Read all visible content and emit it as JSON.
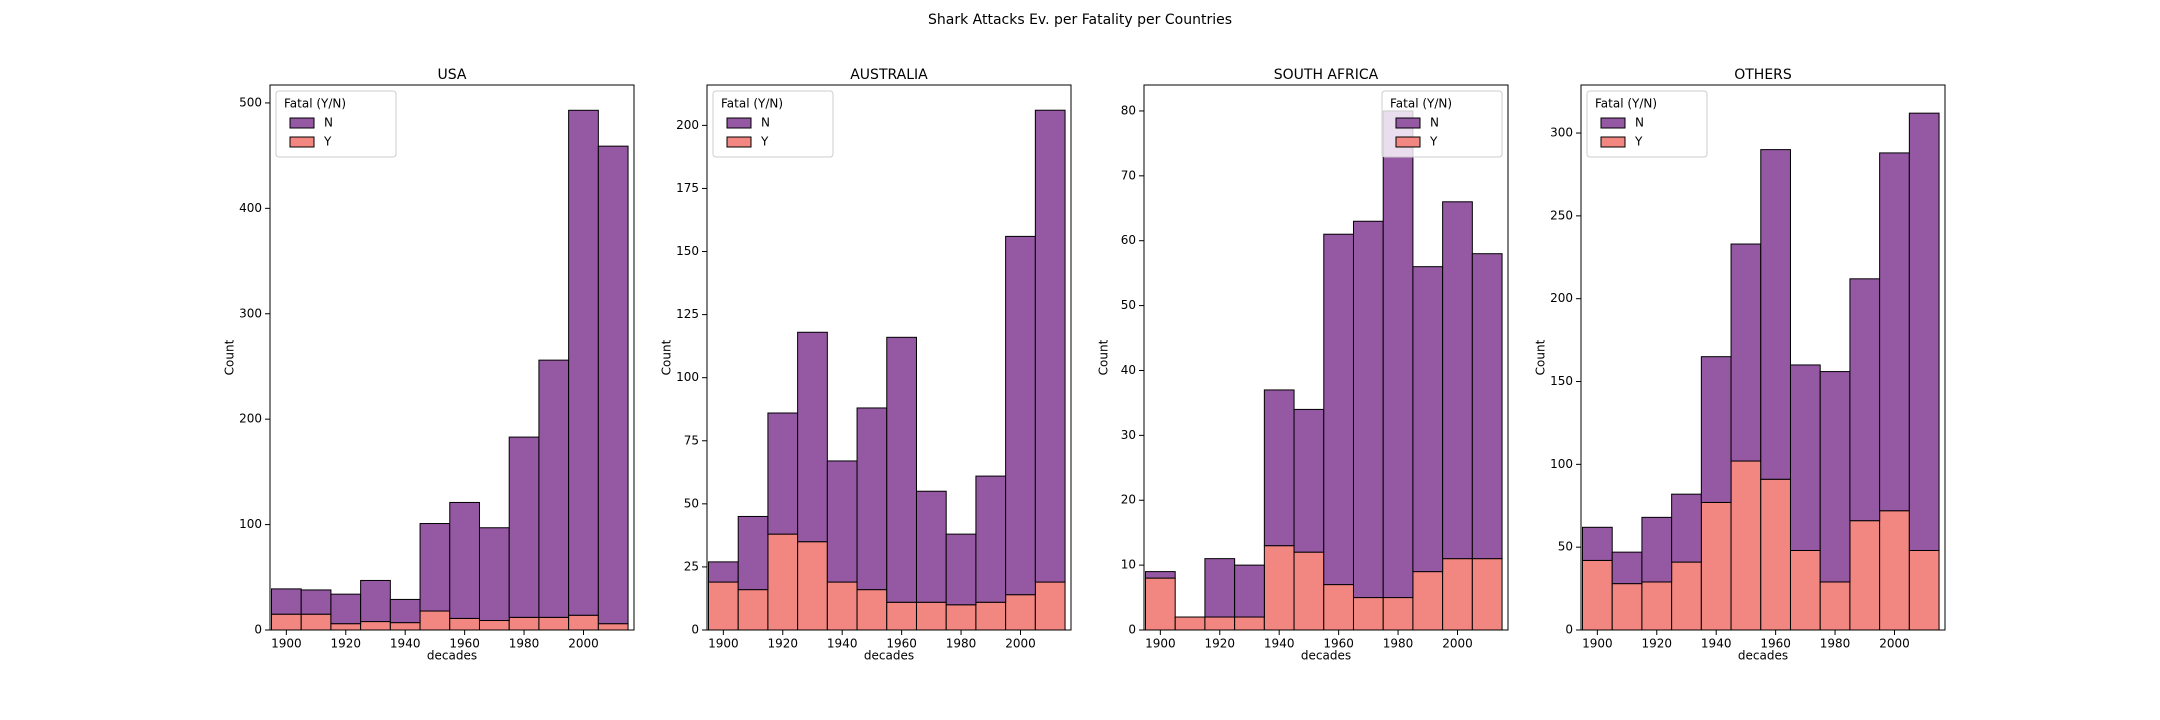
{
  "title": "Shark Attacks Ev. per Fatality per Countries",
  "chart_data": [
    {
      "type": "histogram",
      "title": "USA",
      "xlabel": "decades",
      "ylabel": "Count",
      "legend_title": "Fatal (Y/N)",
      "legend": "upper left",
      "bins": [
        1895,
        1905,
        1915,
        1925,
        1935,
        1945,
        1955,
        1965,
        1975,
        1985,
        1995,
        2005,
        2015
      ],
      "series": [
        {
          "name": "Y",
          "color": "#f28680",
          "values": [
            15,
            15,
            6,
            8,
            7,
            18,
            11,
            9,
            12,
            12,
            14,
            6
          ]
        },
        {
          "name": "N",
          "color": "#9558a3",
          "values": [
            24,
            23,
            28,
            39,
            22,
            83,
            110,
            88,
            171,
            244,
            479,
            453
          ]
        }
      ],
      "xlim": [
        1894.5,
        2017
      ],
      "xticks": [
        1900,
        1920,
        1940,
        1960,
        1980,
        2000
      ],
      "ylim": [
        0,
        517
      ],
      "yticks": [
        0,
        100,
        200,
        300,
        400,
        500
      ]
    },
    {
      "type": "histogram",
      "title": "AUSTRALIA",
      "xlabel": "decades",
      "ylabel": "Count",
      "legend_title": "Fatal (Y/N)",
      "legend": "upper left",
      "bins": [
        1895,
        1905,
        1915,
        1925,
        1935,
        1945,
        1955,
        1965,
        1975,
        1985,
        1995,
        2005,
        2015
      ],
      "series": [
        {
          "name": "Y",
          "color": "#f28680",
          "values": [
            19,
            16,
            38,
            35,
            19,
            16,
            11,
            11,
            10,
            11,
            14,
            19
          ]
        },
        {
          "name": "N",
          "color": "#9558a3",
          "values": [
            8,
            29,
            48,
            83,
            48,
            72,
            105,
            44,
            28,
            50,
            142,
            187
          ]
        }
      ],
      "xlim": [
        1894.5,
        2017
      ],
      "xticks": [
        1900,
        1920,
        1940,
        1960,
        1980,
        2000
      ],
      "ylim": [
        0,
        216
      ],
      "yticks": [
        0,
        25,
        50,
        75,
        100,
        125,
        150,
        175,
        200
      ]
    },
    {
      "type": "histogram",
      "title": "SOUTH AFRICA",
      "xlabel": "decades",
      "ylabel": "Count",
      "legend_title": "Fatal (Y/N)",
      "legend": "upper right",
      "bins": [
        1895,
        1905,
        1915,
        1925,
        1935,
        1945,
        1955,
        1965,
        1975,
        1985,
        1995,
        2005,
        2015
      ],
      "series": [
        {
          "name": "Y",
          "color": "#f28680",
          "values": [
            8,
            2,
            2,
            2,
            13,
            12,
            7,
            5,
            5,
            9,
            11,
            11
          ]
        },
        {
          "name": "N",
          "color": "#9558a3",
          "values": [
            1,
            0,
            9,
            8,
            24,
            22,
            54,
            58,
            75,
            47,
            55,
            47
          ]
        }
      ],
      "xlim": [
        1894.5,
        2017
      ],
      "xticks": [
        1900,
        1920,
        1940,
        1960,
        1980,
        2000
      ],
      "ylim": [
        0,
        84
      ],
      "yticks": [
        0,
        10,
        20,
        30,
        40,
        50,
        60,
        70,
        80
      ]
    },
    {
      "type": "histogram",
      "title": "OTHERS",
      "xlabel": "decades",
      "ylabel": "Count",
      "legend_title": "Fatal (Y/N)",
      "legend": "upper left",
      "bins": [
        1895,
        1905,
        1915,
        1925,
        1935,
        1945,
        1955,
        1965,
        1975,
        1985,
        1995,
        2005,
        2015
      ],
      "series": [
        {
          "name": "Y",
          "color": "#f28680",
          "values": [
            42,
            28,
            29,
            41,
            77,
            102,
            91,
            48,
            29,
            66,
            72,
            48
          ]
        },
        {
          "name": "N",
          "color": "#9558a3",
          "values": [
            20,
            19,
            39,
            41,
            88,
            131,
            199,
            112,
            127,
            146,
            216,
            264
          ]
        }
      ],
      "xlim": [
        1894.5,
        2017
      ],
      "xticks": [
        1900,
        1920,
        1940,
        1960,
        1980,
        2000
      ],
      "ylim": [
        0,
        329
      ],
      "yticks": [
        0,
        50,
        100,
        150,
        200,
        250,
        300
      ]
    }
  ]
}
